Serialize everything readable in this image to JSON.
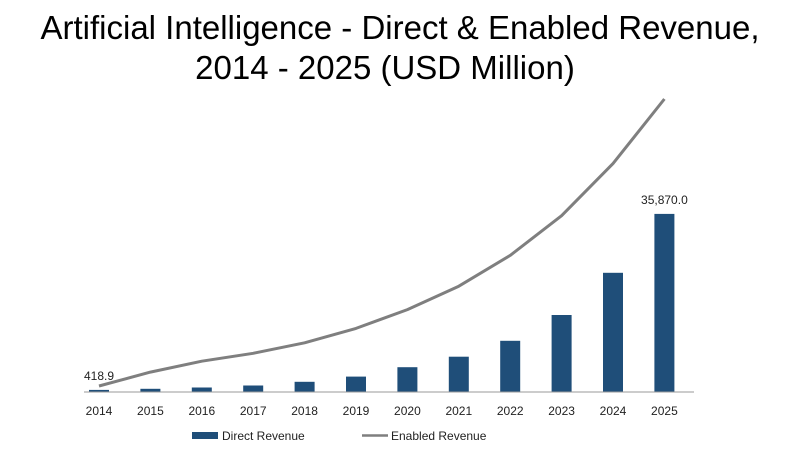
{
  "chart_data": {
    "type": "bar",
    "title_line1": "Artificial Intelligence - Direct & Enabled Revenue,",
    "title_line2": "2014 - 2025 (USD Million)",
    "categories": [
      "2014",
      "2015",
      "2016",
      "2017",
      "2018",
      "2019",
      "2020",
      "2021",
      "2022",
      "2023",
      "2024",
      "2025"
    ],
    "series": [
      {
        "name": "Direct Revenue",
        "type": "bar",
        "color": "#1f4e79",
        "values": [
          418.9,
          650,
          900,
          1300,
          2050,
          3100,
          5000,
          7100,
          10300,
          15500,
          24000,
          35870.0
        ]
      },
      {
        "name": "Enabled Revenue",
        "type": "line",
        "color": "#7f7f7f",
        "values": [
          1200,
          4000,
          6200,
          7800,
          9900,
          12800,
          16600,
          21300,
          27500,
          35500,
          46000,
          59000
        ]
      }
    ],
    "data_labels": [
      {
        "category": "2014",
        "text": "418.9"
      },
      {
        "category": "2025",
        "text": "35,870.0"
      }
    ],
    "ylim": [
      0,
      59000
    ],
    "xlabel": "",
    "ylabel": "",
    "grid": false,
    "legend": "bottom-center"
  }
}
